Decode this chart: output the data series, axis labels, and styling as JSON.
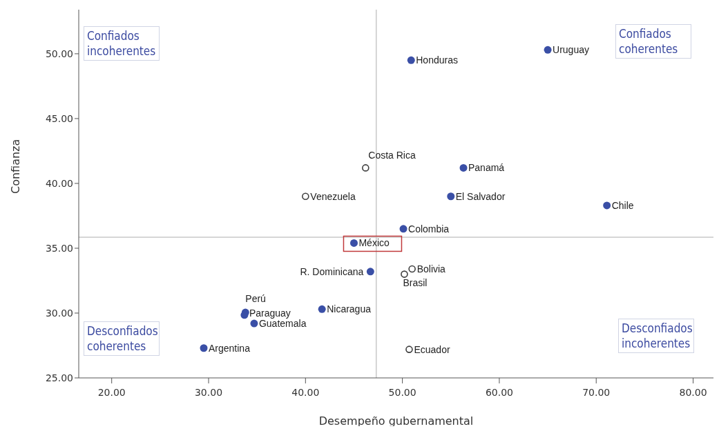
{
  "chart_data": {
    "type": "scatter",
    "xlabel": "Desempeño gubernamental",
    "ylabel": "Confianza",
    "xlim": [
      16.6,
      82.1
    ],
    "ylim": [
      25,
      53.4
    ],
    "xticks": [
      {
        "value": 20,
        "label": "20.00"
      },
      {
        "value": 30,
        "label": "30.00"
      },
      {
        "value": 40,
        "label": "40.00"
      },
      {
        "value": 50,
        "label": "50.00"
      },
      {
        "value": 60,
        "label": "60.00"
      },
      {
        "value": 70,
        "label": "70.00"
      },
      {
        "value": 80,
        "label": "80.00"
      }
    ],
    "yticks": [
      {
        "value": 25,
        "label": "25.00"
      },
      {
        "value": 30,
        "label": "30.00"
      },
      {
        "value": 35,
        "label": "35.00"
      },
      {
        "value": 40,
        "label": "40.00"
      },
      {
        "value": 45,
        "label": "45.00"
      },
      {
        "value": 50,
        "label": "50.00"
      }
    ],
    "grid": false,
    "marker": "circle",
    "series": [
      {
        "color": "#3a4fa6",
        "x": [
          50.9,
          65.0,
          56.3,
          55.0,
          71.1,
          50.1,
          45.0,
          46.7,
          33.8,
          33.7,
          34.7,
          41.7,
          29.5
        ],
        "values": [
          49.5,
          50.3,
          41.2,
          39.0,
          38.3,
          36.5,
          35.4,
          33.2,
          30.05,
          29.85,
          29.2,
          30.3,
          27.3
        ]
      },
      {
        "color": "#404040",
        "x": [
          46.2,
          40.0,
          51.0,
          50.2,
          50.7
        ],
        "values": [
          41.2,
          39.0,
          33.4,
          33.0,
          27.2
        ]
      }
    ],
    "ref_lines": [
      {
        "axis": "x",
        "value": 47.3,
        "color": "#c8c8c8"
      },
      {
        "axis": "y",
        "value": 35.85,
        "color": "#c8c8c8"
      }
    ],
    "annotations": [
      "Confiados incoherentes",
      "Confiados coherentes",
      "Desconfiados coherentes",
      "Desconfiados incoherentes",
      {
        "text": "México",
        "x": 45.0,
        "y": 35.4
      },
      {
        "text": "Honduras",
        "x": 50.9,
        "y": 49.5
      },
      {
        "text": "Uruguay",
        "x": 65.0,
        "y": 50.3
      },
      {
        "text": "Costa Rica",
        "x": 46.2,
        "y": 41.2
      },
      {
        "text": "Panamá",
        "x": 56.3,
        "y": 41.2
      },
      {
        "text": "Venezuela",
        "x": 40.0,
        "y": 39.0
      },
      {
        "text": "El Salvador",
        "x": 55.0,
        "y": 39.0
      },
      {
        "text": "Chile",
        "x": 71.1,
        "y": 38.3
      },
      {
        "text": "Colombia",
        "x": 50.1,
        "y": 36.5
      },
      {
        "text": "R. Dominicana",
        "x": 46.7,
        "y": 33.2
      },
      {
        "text": "Bolivia",
        "x": 51.0,
        "y": 33.4
      },
      {
        "text": "Brasil",
        "x": 50.2,
        "y": 33.0
      },
      {
        "text": "Perú",
        "x": 33.8,
        "y": 30.05
      },
      {
        "text": "Paraguay",
        "x": 33.7,
        "y": 29.85
      },
      {
        "text": "Guatemala",
        "x": 34.7,
        "y": 29.2
      },
      {
        "text": "Nicaragua",
        "x": 41.7,
        "y": 30.3
      },
      {
        "text": "Argentina",
        "x": 29.5,
        "y": 27.3
      },
      {
        "text": "Ecuador",
        "x": 50.7,
        "y": 27.2
      }
    ]
  }
}
